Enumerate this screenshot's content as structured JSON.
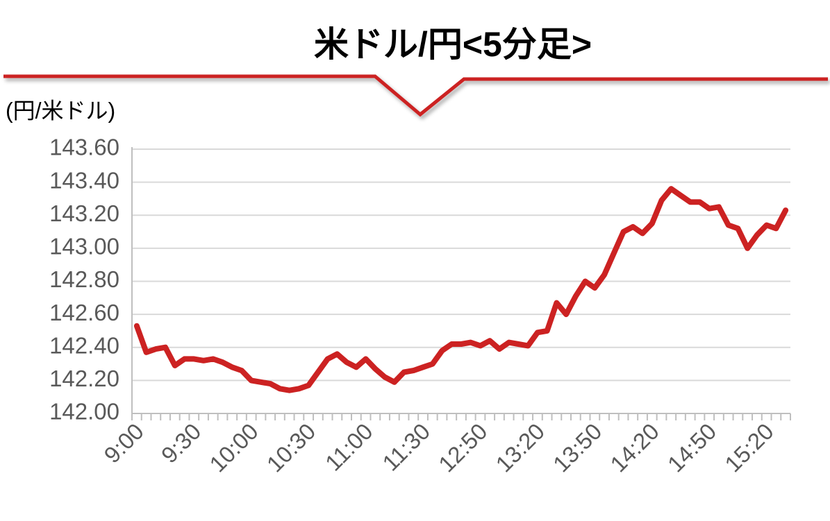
{
  "chart_data": {
    "type": "line",
    "title": "米ドル/円<5分足>",
    "y_label": "(円/米ドル)",
    "categories": [
      "9:00",
      null,
      null,
      null,
      null,
      null,
      "9:30",
      null,
      null,
      null,
      null,
      null,
      "10:00",
      null,
      null,
      null,
      null,
      null,
      "10:30",
      null,
      null,
      null,
      null,
      null,
      "11:00",
      null,
      null,
      null,
      null,
      null,
      "11:30",
      null,
      null,
      null,
      null,
      null,
      "12:50",
      null,
      null,
      null,
      null,
      null,
      "13:20",
      null,
      null,
      null,
      null,
      null,
      "13:50",
      null,
      null,
      null,
      null,
      null,
      "14:20",
      null,
      null,
      null,
      null,
      null,
      "14:50",
      null,
      null,
      null,
      null,
      null,
      "15:20",
      null,
      null
    ],
    "series": [
      {
        "color": "#cc2222",
        "values": [
          142.53,
          142.37,
          142.39,
          142.4,
          142.29,
          142.33,
          142.33,
          142.32,
          142.33,
          142.31,
          142.28,
          142.26,
          142.2,
          142.19,
          142.18,
          142.15,
          142.14,
          142.15,
          142.17,
          142.25,
          142.33,
          142.36,
          142.31,
          142.28,
          142.33,
          142.27,
          142.22,
          142.19,
          142.25,
          142.26,
          142.28,
          142.3,
          142.38,
          142.42,
          142.42,
          142.43,
          142.41,
          142.44,
          142.39,
          142.43,
          142.42,
          142.41,
          142.49,
          142.5,
          142.67,
          142.6,
          142.71,
          142.8,
          142.76,
          142.84,
          142.97,
          143.1,
          143.13,
          143.09,
          143.15,
          143.29,
          143.36,
          143.32,
          143.28,
          143.28,
          143.24,
          143.25,
          143.14,
          143.12,
          143.0,
          143.08,
          143.14,
          143.12,
          143.23
        ]
      }
    ],
    "ylim": [
      142.0,
      143.6
    ],
    "yticks": [
      {
        "value": 142.0,
        "label": "142.00"
      },
      {
        "value": 142.2,
        "label": "142.20"
      },
      {
        "value": 142.4,
        "label": "142.40"
      },
      {
        "value": 142.6,
        "label": "142.60"
      },
      {
        "value": 142.8,
        "label": "142.80"
      },
      {
        "value": 143.0,
        "label": "143.00"
      },
      {
        "value": 143.2,
        "label": "143.20"
      },
      {
        "value": 143.4,
        "label": "143.40"
      },
      {
        "value": 143.6,
        "label": "143.60"
      }
    ],
    "grid": true
  }
}
